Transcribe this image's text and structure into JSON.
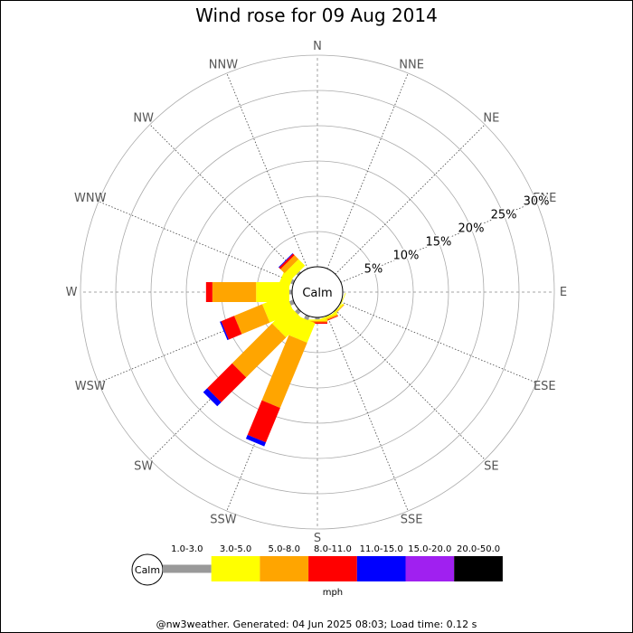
{
  "chart_data": {
    "type": "wind-rose",
    "title": "Wind rose for 09 Aug 2014",
    "center_label": "Calm",
    "directions": [
      "N",
      "NNE",
      "NE",
      "ENE",
      "E",
      "ESE",
      "SE",
      "SSE",
      "S",
      "SSW",
      "SW",
      "WSW",
      "W",
      "WNW",
      "NW",
      "NNW"
    ],
    "ring_labels": [
      "5%",
      "10%",
      "15%",
      "20%",
      "25%",
      "30%"
    ],
    "ring_values": [
      5,
      10,
      15,
      20,
      25,
      30
    ],
    "r_max": 30,
    "units": "mph",
    "bins": [
      {
        "label": "1.0-3.0",
        "color": "#999999"
      },
      {
        "label": "3.0-5.0",
        "color": "#ffff00"
      },
      {
        "label": "5.0-8.0",
        "color": "#ffa500"
      },
      {
        "label": "8.0-11.0",
        "color": "#ff0000"
      },
      {
        "label": "11.0-15.0",
        "color": "#0000ff"
      },
      {
        "label": "15.0-20.0",
        "color": "#a020f0"
      },
      {
        "label": "20.0-50.0",
        "color": "#000000"
      }
    ],
    "series": [
      {
        "direction": "N",
        "values": [
          0,
          0,
          0,
          0,
          0,
          0,
          0
        ]
      },
      {
        "direction": "NNE",
        "values": [
          0,
          0,
          0,
          0,
          0,
          0,
          0
        ]
      },
      {
        "direction": "NE",
        "values": [
          0,
          0,
          0,
          0,
          0,
          0,
          0
        ]
      },
      {
        "direction": "ENE",
        "values": [
          0,
          0,
          0,
          0,
          0,
          0,
          0
        ]
      },
      {
        "direction": "E",
        "values": [
          0,
          0,
          0,
          0,
          0,
          0,
          0
        ]
      },
      {
        "direction": "ESE",
        "values": [
          0.1,
          0.1,
          0,
          0,
          0,
          0,
          0
        ]
      },
      {
        "direction": "SE",
        "values": [
          0.1,
          0.2,
          0.1,
          0,
          0,
          0,
          0
        ]
      },
      {
        "direction": "SSE",
        "values": [
          0.1,
          0.3,
          0.2,
          0.1,
          0,
          0,
          0
        ]
      },
      {
        "direction": "S",
        "values": [
          0.3,
          0.2,
          0.2,
          0.2,
          0,
          0,
          0
        ]
      },
      {
        "direction": "SSW",
        "values": [
          0.6,
          3.0,
          10.0,
          5.3,
          0.6,
          0,
          0
        ]
      },
      {
        "direction": "SW",
        "values": [
          0.6,
          3.5,
          8.0,
          5.0,
          0.8,
          0,
          0
        ]
      },
      {
        "direction": "WSW",
        "values": [
          0.6,
          3.7,
          4.3,
          2.0,
          0.2,
          0,
          0
        ]
      },
      {
        "direction": "W",
        "values": [
          0.4,
          4.7,
          6.2,
          0.9,
          0,
          0,
          0
        ]
      },
      {
        "direction": "WNW",
        "values": [
          0.4,
          1.5,
          0,
          0,
          0,
          0,
          0
        ]
      },
      {
        "direction": "NW",
        "values": [
          0.3,
          1.3,
          0.8,
          0.3,
          0.1,
          0,
          0
        ]
      },
      {
        "direction": "NNW",
        "values": [
          0,
          0,
          0,
          0,
          0,
          0,
          0
        ]
      }
    ]
  },
  "footer": "@nw3weather. Generated: 04 Jun 2025 08:03; Load time: 0.12 s"
}
